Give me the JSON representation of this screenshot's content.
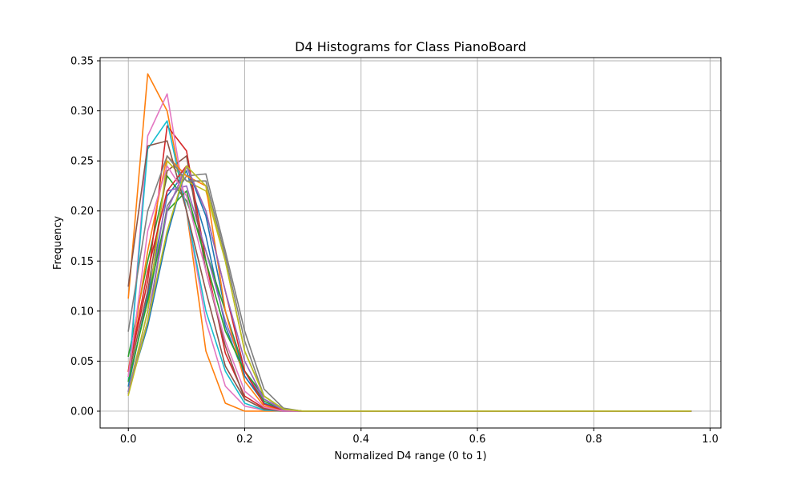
{
  "chart_data": {
    "type": "line",
    "title": "D4 Histograms for Class PianoBoard",
    "xlabel": "Normalized D4 range (0 to 1)",
    "ylabel": "Frequency",
    "xlim": [
      -0.0485,
      1.0185
    ],
    "ylim": [
      -0.0168,
      0.3532
    ],
    "xticks": [
      0.0,
      0.2,
      0.4,
      0.6,
      0.8,
      1.0
    ],
    "xtick_labels": [
      "0.0",
      "0.2",
      "0.4",
      "0.6",
      "0.8",
      "1.0"
    ],
    "yticks": [
      0.0,
      0.05,
      0.1,
      0.15,
      0.2,
      0.25,
      0.3,
      0.35
    ],
    "ytick_labels": [
      "0.00",
      "0.05",
      "0.10",
      "0.15",
      "0.20",
      "0.25",
      "0.30",
      "0.35"
    ],
    "grid": true,
    "legend": "none",
    "x": [
      0.0,
      0.0333,
      0.0667,
      0.1,
      0.1333,
      0.1667,
      0.2,
      0.2333,
      0.2667,
      0.3,
      0.3333,
      0.3667,
      0.4,
      0.4333,
      0.4667,
      0.5,
      0.5333,
      0.5667,
      0.6,
      0.6333,
      0.6667,
      0.7,
      0.7333,
      0.7667,
      0.8,
      0.8333,
      0.8667,
      0.9,
      0.9333,
      0.9667
    ],
    "series": [
      {
        "color": "#1f77b4",
        "values": [
          0.025,
          0.115,
          0.215,
          0.24,
          0.175,
          0.085,
          0.035,
          0.008,
          0.001,
          0,
          0,
          0,
          0,
          0,
          0,
          0,
          0,
          0,
          0,
          0,
          0,
          0,
          0,
          0,
          0,
          0,
          0,
          0,
          0,
          0
        ]
      },
      {
        "color": "#ff7f0e",
        "values": [
          0.113,
          0.337,
          0.3,
          0.2,
          0.06,
          0.008,
          0.0,
          0.0,
          0,
          0,
          0,
          0,
          0,
          0,
          0,
          0,
          0,
          0,
          0,
          0,
          0,
          0,
          0,
          0,
          0,
          0,
          0,
          0,
          0,
          0
        ]
      },
      {
        "color": "#2ca02c",
        "values": [
          0.055,
          0.15,
          0.235,
          0.21,
          0.16,
          0.1,
          0.04,
          0.01,
          0.001,
          0,
          0,
          0,
          0,
          0,
          0,
          0,
          0,
          0,
          0,
          0,
          0,
          0,
          0,
          0,
          0,
          0,
          0,
          0,
          0,
          0
        ]
      },
      {
        "color": "#d62728",
        "values": [
          0.04,
          0.13,
          0.285,
          0.26,
          0.15,
          0.058,
          0.015,
          0.003,
          0.0,
          0,
          0,
          0,
          0,
          0,
          0,
          0,
          0,
          0,
          0,
          0,
          0,
          0,
          0,
          0,
          0,
          0,
          0,
          0,
          0,
          0
        ]
      },
      {
        "color": "#9467bd",
        "values": [
          0.018,
          0.1,
          0.22,
          0.225,
          0.16,
          0.09,
          0.04,
          0.012,
          0.002,
          0,
          0,
          0,
          0,
          0,
          0,
          0,
          0,
          0,
          0,
          0,
          0,
          0,
          0,
          0,
          0,
          0,
          0,
          0,
          0,
          0
        ]
      },
      {
        "color": "#8c564b",
        "values": [
          0.035,
          0.12,
          0.24,
          0.255,
          0.14,
          0.065,
          0.012,
          0.002,
          0.0,
          0,
          0,
          0,
          0,
          0,
          0,
          0,
          0,
          0,
          0,
          0,
          0,
          0,
          0,
          0,
          0,
          0,
          0,
          0,
          0,
          0
        ]
      },
      {
        "color": "#e377c2",
        "values": [
          0.03,
          0.275,
          0.317,
          0.2,
          0.09,
          0.025,
          0.005,
          0.001,
          0.0,
          0,
          0,
          0,
          0,
          0,
          0,
          0,
          0,
          0,
          0,
          0,
          0,
          0,
          0,
          0,
          0,
          0,
          0,
          0,
          0,
          0
        ]
      },
      {
        "color": "#7f7f7f",
        "values": [
          0.02,
          0.09,
          0.205,
          0.235,
          0.237,
          0.16,
          0.08,
          0.022,
          0.003,
          0,
          0,
          0,
          0,
          0,
          0,
          0,
          0,
          0,
          0,
          0,
          0,
          0,
          0,
          0,
          0,
          0,
          0,
          0,
          0,
          0
        ]
      },
      {
        "color": "#bcbd22",
        "values": [
          0.02,
          0.1,
          0.25,
          0.23,
          0.22,
          0.15,
          0.06,
          0.015,
          0.002,
          0,
          0,
          0,
          0,
          0,
          0,
          0,
          0,
          0,
          0,
          0,
          0,
          0,
          0,
          0,
          0,
          0,
          0,
          0,
          0,
          0
        ]
      },
      {
        "color": "#17becf",
        "values": [
          0.03,
          0.262,
          0.29,
          0.2,
          0.1,
          0.04,
          0.008,
          0.001,
          0.0,
          0,
          0,
          0,
          0,
          0,
          0,
          0,
          0,
          0,
          0,
          0,
          0,
          0,
          0,
          0,
          0,
          0,
          0,
          0,
          0,
          0
        ]
      },
      {
        "color": "#1f77b4",
        "values": [
          0.02,
          0.085,
          0.175,
          0.245,
          0.195,
          0.1,
          0.035,
          0.008,
          0.001,
          0,
          0,
          0,
          0,
          0,
          0,
          0,
          0,
          0,
          0,
          0,
          0,
          0,
          0,
          0,
          0,
          0,
          0,
          0,
          0,
          0
        ]
      },
      {
        "color": "#ff7f0e",
        "values": [
          0.04,
          0.16,
          0.255,
          0.235,
          0.225,
          0.1,
          0.03,
          0.005,
          0.001,
          0,
          0,
          0,
          0,
          0,
          0,
          0,
          0,
          0,
          0,
          0,
          0,
          0,
          0,
          0,
          0,
          0,
          0,
          0,
          0,
          0
        ]
      },
      {
        "color": "#2ca02c",
        "values": [
          0.03,
          0.11,
          0.2,
          0.22,
          0.15,
          0.08,
          0.04,
          0.015,
          0.002,
          0,
          0,
          0,
          0,
          0,
          0,
          0,
          0,
          0,
          0,
          0,
          0,
          0,
          0,
          0,
          0,
          0,
          0,
          0,
          0,
          0
        ]
      },
      {
        "color": "#d62728",
        "values": [
          0.04,
          0.14,
          0.22,
          0.245,
          0.2,
          0.12,
          0.04,
          0.007,
          0.001,
          0,
          0,
          0,
          0,
          0,
          0,
          0,
          0,
          0,
          0,
          0,
          0,
          0,
          0,
          0,
          0,
          0,
          0,
          0,
          0,
          0
        ]
      },
      {
        "color": "#9467bd",
        "values": [
          0.02,
          0.09,
          0.2,
          0.245,
          0.2,
          0.12,
          0.05,
          0.012,
          0.001,
          0,
          0,
          0,
          0,
          0,
          0,
          0,
          0,
          0,
          0,
          0,
          0,
          0,
          0,
          0,
          0,
          0,
          0,
          0,
          0,
          0
        ]
      },
      {
        "color": "#8c564b",
        "values": [
          0.125,
          0.265,
          0.27,
          0.2,
          0.12,
          0.045,
          0.012,
          0.002,
          0.0,
          0,
          0,
          0,
          0,
          0,
          0,
          0,
          0,
          0,
          0,
          0,
          0,
          0,
          0,
          0,
          0,
          0,
          0,
          0,
          0,
          0
        ]
      },
      {
        "color": "#e377c2",
        "values": [
          0.035,
          0.18,
          0.245,
          0.215,
          0.14,
          0.07,
          0.02,
          0.004,
          0.0,
          0,
          0,
          0,
          0,
          0,
          0,
          0,
          0,
          0,
          0,
          0,
          0,
          0,
          0,
          0,
          0,
          0,
          0,
          0,
          0,
          0
        ]
      },
      {
        "color": "#7f7f7f",
        "values": [
          0.08,
          0.2,
          0.255,
          0.23,
          0.23,
          0.155,
          0.07,
          0.015,
          0.002,
          0,
          0,
          0,
          0,
          0,
          0,
          0,
          0,
          0,
          0,
          0,
          0,
          0,
          0,
          0,
          0,
          0,
          0,
          0,
          0,
          0
        ]
      },
      {
        "color": "#bcbd22",
        "values": [
          0.016,
          0.09,
          0.18,
          0.245,
          0.225,
          0.15,
          0.06,
          0.015,
          0.002,
          0,
          0,
          0,
          0,
          0,
          0,
          0,
          0,
          0,
          0,
          0,
          0,
          0,
          0,
          0,
          0,
          0,
          0,
          0,
          0,
          0
        ]
      }
    ]
  }
}
